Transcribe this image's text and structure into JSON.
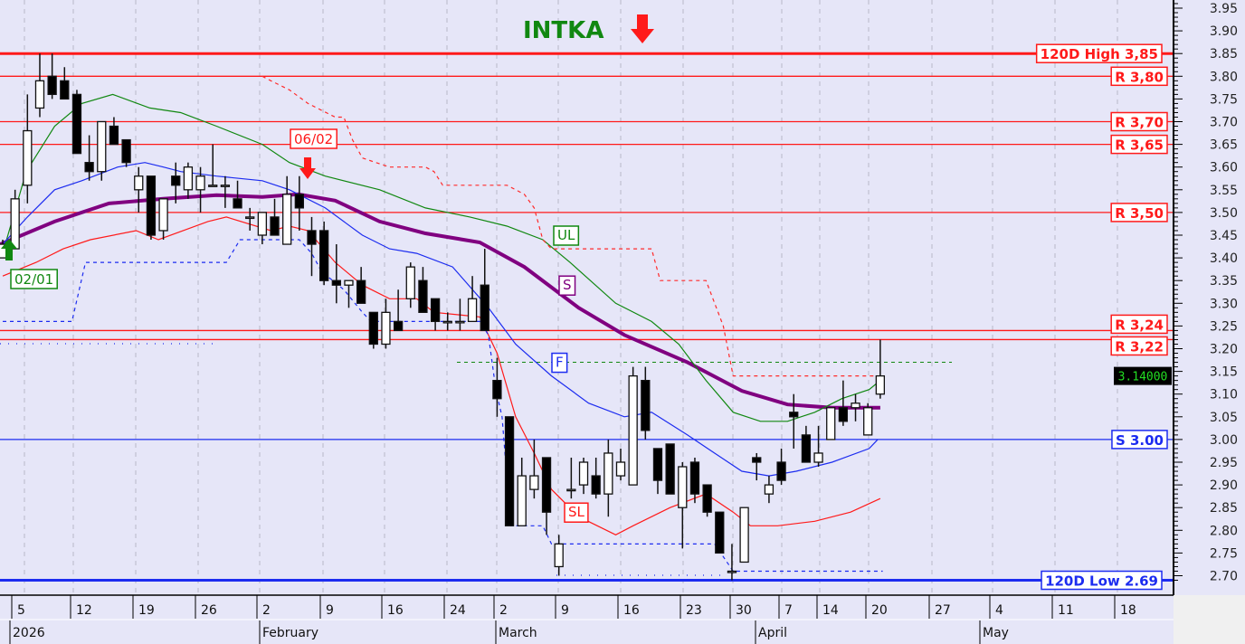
{
  "chart_data": {
    "type": "candlestick",
    "title": "INTKA",
    "ylim": [
      2.66,
      3.97
    ],
    "y_ticks": [
      "3.95",
      "3.90",
      "3.85",
      "3.80",
      "3.75",
      "3.70",
      "3.65",
      "3.60",
      "3.55",
      "3.50",
      "3.45",
      "3.40",
      "3.35",
      "3.30",
      "3.25",
      "3.20",
      "3.15",
      "3.10",
      "3.05",
      "3.00",
      "2.95",
      "2.90",
      "2.85",
      "2.80",
      "2.75",
      "2.70"
    ],
    "last_price": "3.14000",
    "date_ticks": [
      "5",
      "12",
      "19",
      "26",
      "2",
      "9",
      "16",
      "24",
      "2",
      "9",
      "16",
      "23",
      "30",
      "7",
      "14",
      "20",
      "27",
      "4",
      "11",
      "18"
    ],
    "months": [
      "2026",
      "February",
      "March",
      "April",
      "May"
    ],
    "candles_ohlc": [
      [
        3.4,
        3.44,
        3.4,
        3.43
      ],
      [
        3.42,
        3.55,
        3.42,
        3.53
      ],
      [
        3.56,
        3.76,
        3.52,
        3.68
      ],
      [
        3.73,
        3.85,
        3.71,
        3.79
      ],
      [
        3.8,
        3.85,
        3.75,
        3.76
      ],
      [
        3.79,
        3.82,
        3.75,
        3.75
      ],
      [
        3.76,
        3.77,
        3.63,
        3.63
      ],
      [
        3.61,
        3.67,
        3.57,
        3.59
      ],
      [
        3.59,
        3.7,
        3.57,
        3.7
      ],
      [
        3.69,
        3.71,
        3.65,
        3.65
      ],
      [
        3.66,
        3.66,
        3.6,
        3.61
      ],
      [
        3.55,
        3.6,
        3.5,
        3.58
      ],
      [
        3.58,
        3.58,
        3.44,
        3.45
      ],
      [
        3.46,
        3.53,
        3.44,
        3.53
      ],
      [
        3.58,
        3.61,
        3.52,
        3.56
      ],
      [
        3.55,
        3.61,
        3.53,
        3.6
      ],
      [
        3.55,
        3.6,
        3.5,
        3.58
      ],
      [
        3.56,
        3.65,
        3.56,
        3.56
      ],
      [
        3.56,
        3.58,
        3.51,
        3.56
      ],
      [
        3.53,
        3.57,
        3.51,
        3.51
      ],
      [
        3.49,
        3.51,
        3.46,
        3.49
      ],
      [
        3.45,
        3.5,
        3.43,
        3.5
      ],
      [
        3.49,
        3.53,
        3.45,
        3.45
      ],
      [
        3.43,
        3.58,
        3.43,
        3.54
      ],
      [
        3.54,
        3.58,
        3.46,
        3.51
      ],
      [
        3.46,
        3.49,
        3.36,
        3.43
      ],
      [
        3.46,
        3.48,
        3.34,
        3.35
      ],
      [
        3.35,
        3.43,
        3.3,
        3.34
      ],
      [
        3.34,
        3.35,
        3.29,
        3.35
      ],
      [
        3.35,
        3.38,
        3.3,
        3.3
      ],
      [
        3.28,
        3.28,
        3.2,
        3.21
      ],
      [
        3.21,
        3.31,
        3.2,
        3.28
      ],
      [
        3.26,
        3.33,
        3.24,
        3.24
      ],
      [
        3.31,
        3.39,
        3.29,
        3.38
      ],
      [
        3.35,
        3.38,
        3.28,
        3.28
      ],
      [
        3.31,
        3.31,
        3.24,
        3.26
      ],
      [
        3.26,
        3.28,
        3.24,
        3.26
      ],
      [
        3.26,
        3.31,
        3.24,
        3.26
      ],
      [
        3.26,
        3.36,
        3.26,
        3.31
      ],
      [
        3.34,
        3.42,
        3.24,
        3.24
      ],
      [
        3.13,
        3.18,
        3.05,
        3.09
      ],
      [
        3.05,
        3.05,
        2.81,
        2.81
      ],
      [
        2.81,
        2.96,
        2.81,
        2.92
      ],
      [
        2.89,
        3.0,
        2.87,
        2.92
      ],
      [
        2.96,
        2.96,
        2.79,
        2.84
      ],
      [
        2.72,
        2.79,
        2.7,
        2.77
      ],
      [
        2.89,
        2.96,
        2.87,
        2.89
      ],
      [
        2.9,
        2.96,
        2.88,
        2.95
      ],
      [
        2.92,
        2.96,
        2.87,
        2.88
      ],
      [
        2.88,
        3.0,
        2.83,
        2.97
      ],
      [
        2.92,
        2.98,
        2.91,
        2.95
      ],
      [
        2.9,
        3.16,
        2.9,
        3.14
      ],
      [
        3.13,
        3.16,
        3.0,
        3.02
      ],
      [
        2.98,
        2.98,
        2.88,
        2.91
      ],
      [
        2.99,
        2.99,
        2.88,
        2.88
      ],
      [
        2.85,
        2.95,
        2.76,
        2.94
      ],
      [
        2.95,
        2.96,
        2.86,
        2.88
      ],
      [
        2.9,
        2.9,
        2.83,
        2.84
      ],
      [
        2.84,
        2.84,
        2.75,
        2.75
      ],
      [
        2.71,
        2.77,
        2.69,
        2.71
      ],
      [
        2.73,
        2.85,
        2.73,
        2.85
      ],
      [
        2.96,
        2.97,
        2.91,
        2.95
      ],
      [
        2.88,
        2.92,
        2.86,
        2.9
      ],
      [
        2.95,
        2.98,
        2.9,
        2.91
      ],
      [
        3.06,
        3.1,
        2.98,
        3.05
      ],
      [
        3.01,
        3.03,
        2.95,
        2.95
      ],
      [
        2.95,
        3.03,
        2.94,
        2.97
      ],
      [
        3.0,
        3.07,
        3.0,
        3.07
      ],
      [
        3.07,
        3.13,
        3.03,
        3.04
      ],
      [
        3.07,
        3.1,
        3.04,
        3.08
      ],
      [
        3.01,
        3.08,
        3.01,
        3.07
      ],
      [
        3.1,
        3.22,
        3.09,
        3.14
      ]
    ],
    "series": [
      {
        "name": "S",
        "color": "#800080",
        "style": "thick",
        "points": [
          [
            0.8,
            3.43
          ],
          [
            5.2,
            3.48
          ],
          [
            9.6,
            3.52
          ],
          [
            14,
            3.53
          ],
          [
            18.3,
            3.538
          ],
          [
            22,
            3.534
          ],
          [
            24.9,
            3.54
          ],
          [
            27.9,
            3.526
          ],
          [
            31.5,
            3.48
          ],
          [
            35.2,
            3.454
          ],
          [
            39.6,
            3.434
          ],
          [
            43.2,
            3.38
          ],
          [
            47.6,
            3.29
          ],
          [
            51.3,
            3.23
          ],
          [
            56.4,
            3.17
          ],
          [
            60.8,
            3.107
          ],
          [
            64.5,
            3.077
          ],
          [
            68.1,
            3.07
          ],
          [
            72,
            3.07
          ]
        ]
      },
      {
        "name": "UL",
        "color": "#118811",
        "style": "solid",
        "points": [
          [
            1.1,
            3.42
          ],
          [
            2.9,
            3.59
          ],
          [
            5.2,
            3.69
          ],
          [
            7.4,
            3.74
          ],
          [
            9.9,
            3.76
          ],
          [
            12.9,
            3.73
          ],
          [
            15.4,
            3.72
          ],
          [
            18.3,
            3.69
          ],
          [
            22,
            3.65
          ],
          [
            24.2,
            3.61
          ],
          [
            27.1,
            3.58
          ],
          [
            31.5,
            3.55
          ],
          [
            35.2,
            3.51
          ],
          [
            38.8,
            3.49
          ],
          [
            41.8,
            3.47
          ],
          [
            44.7,
            3.44
          ],
          [
            46.9,
            3.39
          ],
          [
            50.6,
            3.3
          ],
          [
            53.5,
            3.26
          ],
          [
            55.7,
            3.21
          ],
          [
            57.9,
            3.13
          ],
          [
            60.1,
            3.06
          ],
          [
            62.3,
            3.04
          ],
          [
            64.5,
            3.04
          ],
          [
            66.7,
            3.06
          ],
          [
            68.9,
            3.09
          ],
          [
            71.1,
            3.11
          ],
          [
            72,
            3.13
          ]
        ]
      },
      {
        "name": "F",
        "color": "#1c2cf0",
        "style": "solid",
        "points": [
          [
            1,
            3.43
          ],
          [
            3,
            3.49
          ],
          [
            5.2,
            3.55
          ],
          [
            7.4,
            3.57
          ],
          [
            10.3,
            3.6
          ],
          [
            12.5,
            3.61
          ],
          [
            14,
            3.6
          ],
          [
            15.4,
            3.59
          ],
          [
            18.3,
            3.58
          ],
          [
            22,
            3.57
          ],
          [
            24.2,
            3.55
          ],
          [
            27.1,
            3.51
          ],
          [
            30.1,
            3.45
          ],
          [
            32.3,
            3.42
          ],
          [
            34.5,
            3.41
          ],
          [
            37.4,
            3.38
          ],
          [
            40.3,
            3.29
          ],
          [
            42.5,
            3.21
          ],
          [
            45.4,
            3.14
          ],
          [
            48.4,
            3.08
          ],
          [
            51.3,
            3.05
          ],
          [
            53.5,
            3.06
          ],
          [
            56.4,
            3.01
          ],
          [
            58.6,
            2.97
          ],
          [
            60.8,
            2.93
          ],
          [
            63,
            2.92
          ],
          [
            65.2,
            2.93
          ],
          [
            68.1,
            2.95
          ],
          [
            71.1,
            2.98
          ],
          [
            71.8,
            3.0
          ]
        ]
      },
      {
        "name": "SL",
        "color": "#ff1a1a",
        "style": "solid",
        "points": [
          [
            1,
            3.36
          ],
          [
            3.7,
            3.39
          ],
          [
            5.9,
            3.42
          ],
          [
            8.1,
            3.44
          ],
          [
            11.8,
            3.46
          ],
          [
            13.6,
            3.44
          ],
          [
            17.6,
            3.48
          ],
          [
            19.1,
            3.49
          ],
          [
            22.7,
            3.46
          ],
          [
            24.2,
            3.47
          ],
          [
            25.7,
            3.46
          ],
          [
            27.9,
            3.39
          ],
          [
            30.1,
            3.34
          ],
          [
            32.3,
            3.31
          ],
          [
            34.5,
            3.31
          ],
          [
            35.9,
            3.28
          ],
          [
            39.6,
            3.27
          ],
          [
            41,
            3.19
          ],
          [
            42.5,
            3.05
          ],
          [
            44,
            2.97
          ],
          [
            45.4,
            2.89
          ],
          [
            47.6,
            2.83
          ],
          [
            50.6,
            2.79
          ],
          [
            52,
            2.81
          ],
          [
            55,
            2.85
          ],
          [
            57.9,
            2.88
          ],
          [
            60.1,
            2.84
          ],
          [
            61.5,
            2.81
          ],
          [
            63.7,
            2.81
          ],
          [
            66.7,
            2.82
          ],
          [
            69.6,
            2.84
          ],
          [
            72,
            2.87
          ]
        ]
      },
      {
        "name": "upper-stop",
        "color": "#ff2a2a",
        "style": "dotted",
        "points": [
          [
            22,
            3.8
          ],
          [
            22.7,
            3.79
          ],
          [
            24.2,
            3.77
          ],
          [
            25.7,
            3.74
          ],
          [
            27.9,
            3.71
          ],
          [
            28.6,
            3.71
          ],
          [
            29.3,
            3.66
          ],
          [
            30.1,
            3.62
          ],
          [
            32.3,
            3.6
          ],
          [
            35.2,
            3.6
          ],
          [
            35.9,
            3.59
          ],
          [
            36.6,
            3.56
          ],
          [
            41.8,
            3.56
          ],
          [
            43.2,
            3.54
          ],
          [
            44,
            3.51
          ],
          [
            44.7,
            3.44
          ],
          [
            45.4,
            3.42
          ],
          [
            53.5,
            3.42
          ],
          [
            54.2,
            3.35
          ],
          [
            57.9,
            3.35
          ],
          [
            59.3,
            3.25
          ],
          [
            60.1,
            3.14
          ],
          [
            71.8,
            3.14
          ]
        ]
      },
      {
        "name": "lower-stop",
        "color": "#1c2cf0",
        "style": "dotted",
        "points": [
          [
            1,
            3.26
          ],
          [
            6.6,
            3.26
          ],
          [
            7.7,
            3.39
          ],
          [
            19.1,
            3.39
          ],
          [
            20.2,
            3.44
          ],
          [
            25,
            3.44
          ],
          [
            26,
            3.41
          ],
          [
            26.8,
            3.37
          ],
          [
            28.6,
            3.33
          ],
          [
            30.1,
            3.28
          ],
          [
            30.8,
            3.26
          ],
          [
            39.6,
            3.26
          ],
          [
            40.3,
            3.23
          ],
          [
            40.9,
            3.11
          ],
          [
            41.4,
            3.05
          ],
          [
            42.1,
            2.81
          ],
          [
            44.7,
            2.81
          ],
          [
            45.4,
            2.77
          ],
          [
            58.6,
            2.77
          ],
          [
            60.1,
            2.71
          ],
          [
            72.2,
            2.71
          ]
        ]
      }
    ],
    "reference_lines": [
      {
        "value": 3.85,
        "label": "120D High 3,85",
        "color": "#ff1a1a",
        "weight": "thick"
      },
      {
        "value": 3.8,
        "label": "R 3,80",
        "color": "#ff1a1a",
        "weight": "thin"
      },
      {
        "value": 3.7,
        "label": "R 3,70",
        "color": "#ff1a1a",
        "weight": "thin"
      },
      {
        "value": 3.65,
        "label": "R 3,65",
        "color": "#ff1a1a",
        "weight": "thin"
      },
      {
        "value": 3.5,
        "label": "R 3,50",
        "color": "#ff1a1a",
        "weight": "thin"
      },
      {
        "value": 3.24,
        "label": "R 3,24",
        "color": "#ff1a1a",
        "weight": "thin"
      },
      {
        "value": 3.22,
        "label": "R 3,22",
        "color": "#ff1a1a",
        "weight": "thin"
      },
      {
        "value": 3.0,
        "label": "S 3.00",
        "color": "#1c2cf0",
        "weight": "thin"
      },
      {
        "value": 2.69,
        "label": "120D Low 2.69",
        "color": "#1c2cf0",
        "weight": "thick"
      }
    ],
    "target_dashed_level": 3.17,
    "series_tags": [
      {
        "text": "UL",
        "color": "#118811"
      },
      {
        "text": "S",
        "color": "#800080"
      },
      {
        "text": "F",
        "color": "#1c2cf0"
      },
      {
        "text": "SL",
        "color": "#ff1a1a"
      }
    ],
    "signals": [
      {
        "text": "02/01",
        "type": "buy",
        "color": "#118811"
      },
      {
        "text": "06/02",
        "type": "sell",
        "color": "#ff1a1a"
      }
    ],
    "title_color": "#118811",
    "title_arrow": "down",
    "colors": {
      "background": "#e6e6f8",
      "up": "#ffffff",
      "down": "#000000",
      "sell": "#ff1a1a",
      "buy": "#118811"
    }
  }
}
